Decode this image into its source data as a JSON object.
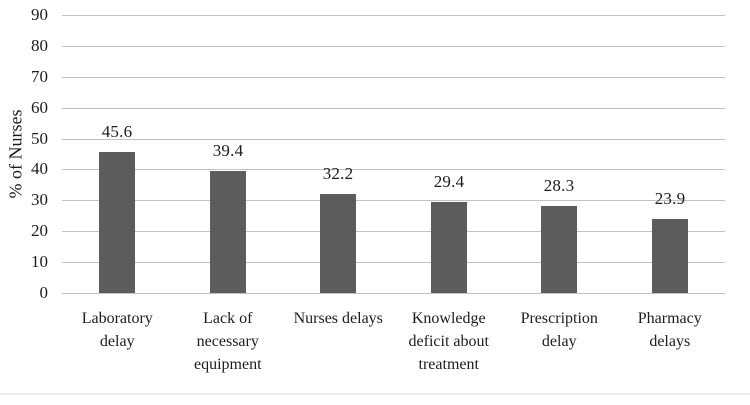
{
  "chart_data": {
    "type": "bar",
    "title": "",
    "categories": [
      "Laboratory delay",
      "Lack of necessary equipment",
      "Nurses delays",
      "Knowledge deficit about treatment",
      "Prescription delay",
      "Pharmacy delays"
    ],
    "values": [
      45.6,
      39.4,
      32.2,
      29.4,
      28.3,
      23.9
    ],
    "value_labels": [
      "45.6",
      "39.4",
      "32.2",
      "29.4",
      "28.3",
      "23.9"
    ],
    "ylabel": "% of Nurses",
    "xlabel": "",
    "ylim": [
      0,
      90
    ],
    "yticks": [
      0,
      10,
      20,
      30,
      40,
      50,
      60,
      70,
      80,
      90
    ],
    "grid": true,
    "legend": false,
    "colors": {
      "bar": "#5c5c5c",
      "gridline": "#c2c2c2",
      "text": "#1c1c1c",
      "background": "#ffffff",
      "bottom_rule": "#ececec"
    }
  }
}
